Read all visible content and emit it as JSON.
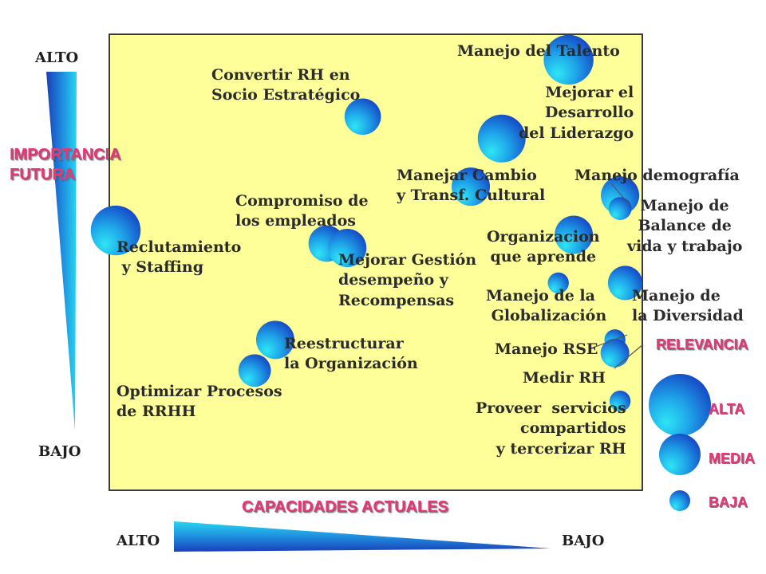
{
  "chart_data": {
    "type": "bubble-matrix",
    "y_axis_title": "IMPORTANCIA\nFUTURA",
    "y_axis_top": "ALTO",
    "y_axis_bottom": "BAJO",
    "x_axis_title": "CAPACIDADES ACTUALES",
    "x_axis_left": "ALTO",
    "x_axis_right": "BAJO",
    "legend": {
      "title": "RELEVANCIA",
      "levels": [
        {
          "name": "ALTA",
          "value": 3
        },
        {
          "name": "MEDIA",
          "value": 2
        },
        {
          "name": "BAJA",
          "value": 1
        }
      ]
    },
    "colors": {
      "plot_bg": "#ffff99",
      "bubble_light": "#25e1f2",
      "bubble_dark": "#1552c9",
      "accent": "#e8357a"
    },
    "bubbles": [
      {
        "label": "Manejo del Talento",
        "capacidad": 0.88,
        "importancia": 0.96,
        "relevancia": 2.6
      },
      {
        "label": "Convertir RH en\nSocio Estratégico",
        "capacidad": 0.48,
        "importancia": 0.83,
        "relevancia": 1.9
      },
      {
        "label": "Mejorar el\nDesarrollo\ndel Liderazgo",
        "capacidad": 0.75,
        "importancia": 0.78,
        "relevancia": 2.5
      },
      {
        "label": "Manejar Cambio\ny Transf. Cultural",
        "capacidad": 0.69,
        "importancia": 0.67,
        "relevancia": 2.0
      },
      {
        "label": "Manejo demografía",
        "capacidad": 0.98,
        "importancia": 0.65,
        "relevancia": 2.0
      },
      {
        "label": "Manejo de\nBalance de\nvida y trabajo",
        "capacidad": 0.98,
        "importancia": 0.62,
        "relevancia": 1.2
      },
      {
        "label": "Compromiso de\nlos empleados",
        "capacidad": 0.41,
        "importancia": 0.54,
        "relevancia": 1.9
      },
      {
        "label": "Mejorar Gestión\ndesempeño y\nRecompensas",
        "capacidad": 0.45,
        "importancia": 0.53,
        "relevancia": 2.0
      },
      {
        "label": "Reclutamiento\n y Staffing",
        "capacidad": 0.0,
        "importancia": 0.57,
        "relevancia": 2.6
      },
      {
        "label": "Organizacion\nque aprende",
        "capacidad": 0.89,
        "importancia": 0.56,
        "relevancia": 2.0
      },
      {
        "label": "Manejo de la\n Globalización",
        "capacidad": 0.86,
        "importancia": 0.45,
        "relevancia": 1.1
      },
      {
        "label": "Manejo de\nla Diversidad",
        "capacidad": 0.99,
        "importancia": 0.45,
        "relevancia": 1.8
      },
      {
        "label": "Reestructurar\nla Organización",
        "capacidad": 0.31,
        "importancia": 0.32,
        "relevancia": 2.0
      },
      {
        "label": "Optimizar Procesos\nde RRHH",
        "capacidad": 0.27,
        "importancia": 0.25,
        "relevancia": 1.7
      },
      {
        "label": "Manejo RSE",
        "capacidad": 0.97,
        "importancia": 0.32,
        "relevancia": 1.1
      },
      {
        "label": "Medir RH",
        "capacidad": 0.97,
        "importancia": 0.29,
        "relevancia": 1.5
      },
      {
        "label": "Proveer  servicios\ncompartidos\ny tercerizar RH",
        "capacidad": 0.98,
        "importancia": 0.18,
        "relevancia": 1.1
      }
    ]
  }
}
